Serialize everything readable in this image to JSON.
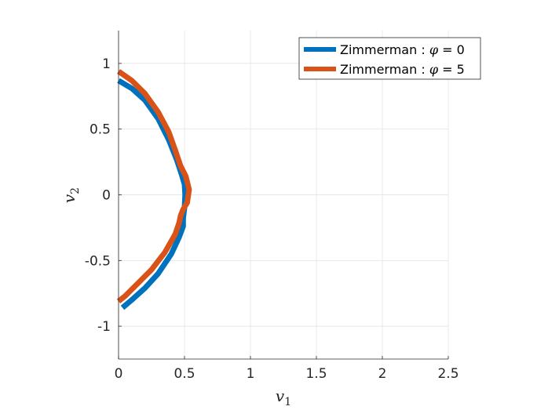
{
  "chart_data": {
    "type": "line",
    "xlabel": {
      "base": "v",
      "sub": "1"
    },
    "ylabel": {
      "base": "v",
      "sub": "2"
    },
    "xlim": [
      0,
      2.5
    ],
    "ylim": [
      -1.25,
      1.25
    ],
    "xticks": [
      0,
      0.5,
      1,
      1.5,
      2,
      2.5
    ],
    "xtick_labels": [
      "0",
      "0.5",
      "1",
      "1.5",
      "2",
      "2.5"
    ],
    "yticks": [
      -1,
      -0.5,
      0,
      0.5,
      1
    ],
    "ytick_labels": [
      "-1",
      "-0.5",
      "0",
      "0.5",
      "1"
    ],
    "grid": true,
    "legend_placement": "top-right",
    "series": [
      {
        "label_prefix": "Zimmerman : ",
        "label_symbol": "φ",
        "label_suffix": " = 0",
        "color": "#0072BD",
        "x": [
          0.0,
          0.1,
          0.2,
          0.3,
          0.38,
          0.44,
          0.48,
          0.5,
          0.505,
          0.5,
          0.49,
          0.49,
          0.46,
          0.4,
          0.3,
          0.2,
          0.1,
          0.03
        ],
        "y": [
          0.87,
          0.81,
          0.72,
          0.58,
          0.42,
          0.27,
          0.15,
          0.08,
          0.0,
          -0.1,
          -0.18,
          -0.24,
          -0.32,
          -0.45,
          -0.6,
          -0.71,
          -0.8,
          -0.86
        ]
      },
      {
        "label_prefix": "Zimmerman : ",
        "label_symbol": "φ",
        "label_suffix": " = 5",
        "color": "#D95319",
        "x": [
          0.0,
          0.1,
          0.2,
          0.3,
          0.38,
          0.43,
          0.47,
          0.51,
          0.535,
          0.52,
          0.49,
          0.47,
          0.46,
          0.43,
          0.35,
          0.25,
          0.15,
          0.05,
          0.0
        ],
        "y": [
          0.94,
          0.87,
          0.77,
          0.63,
          0.48,
          0.34,
          0.22,
          0.14,
          0.04,
          -0.06,
          -0.11,
          -0.16,
          -0.21,
          -0.3,
          -0.44,
          -0.57,
          -0.67,
          -0.77,
          -0.81
        ]
      }
    ]
  }
}
